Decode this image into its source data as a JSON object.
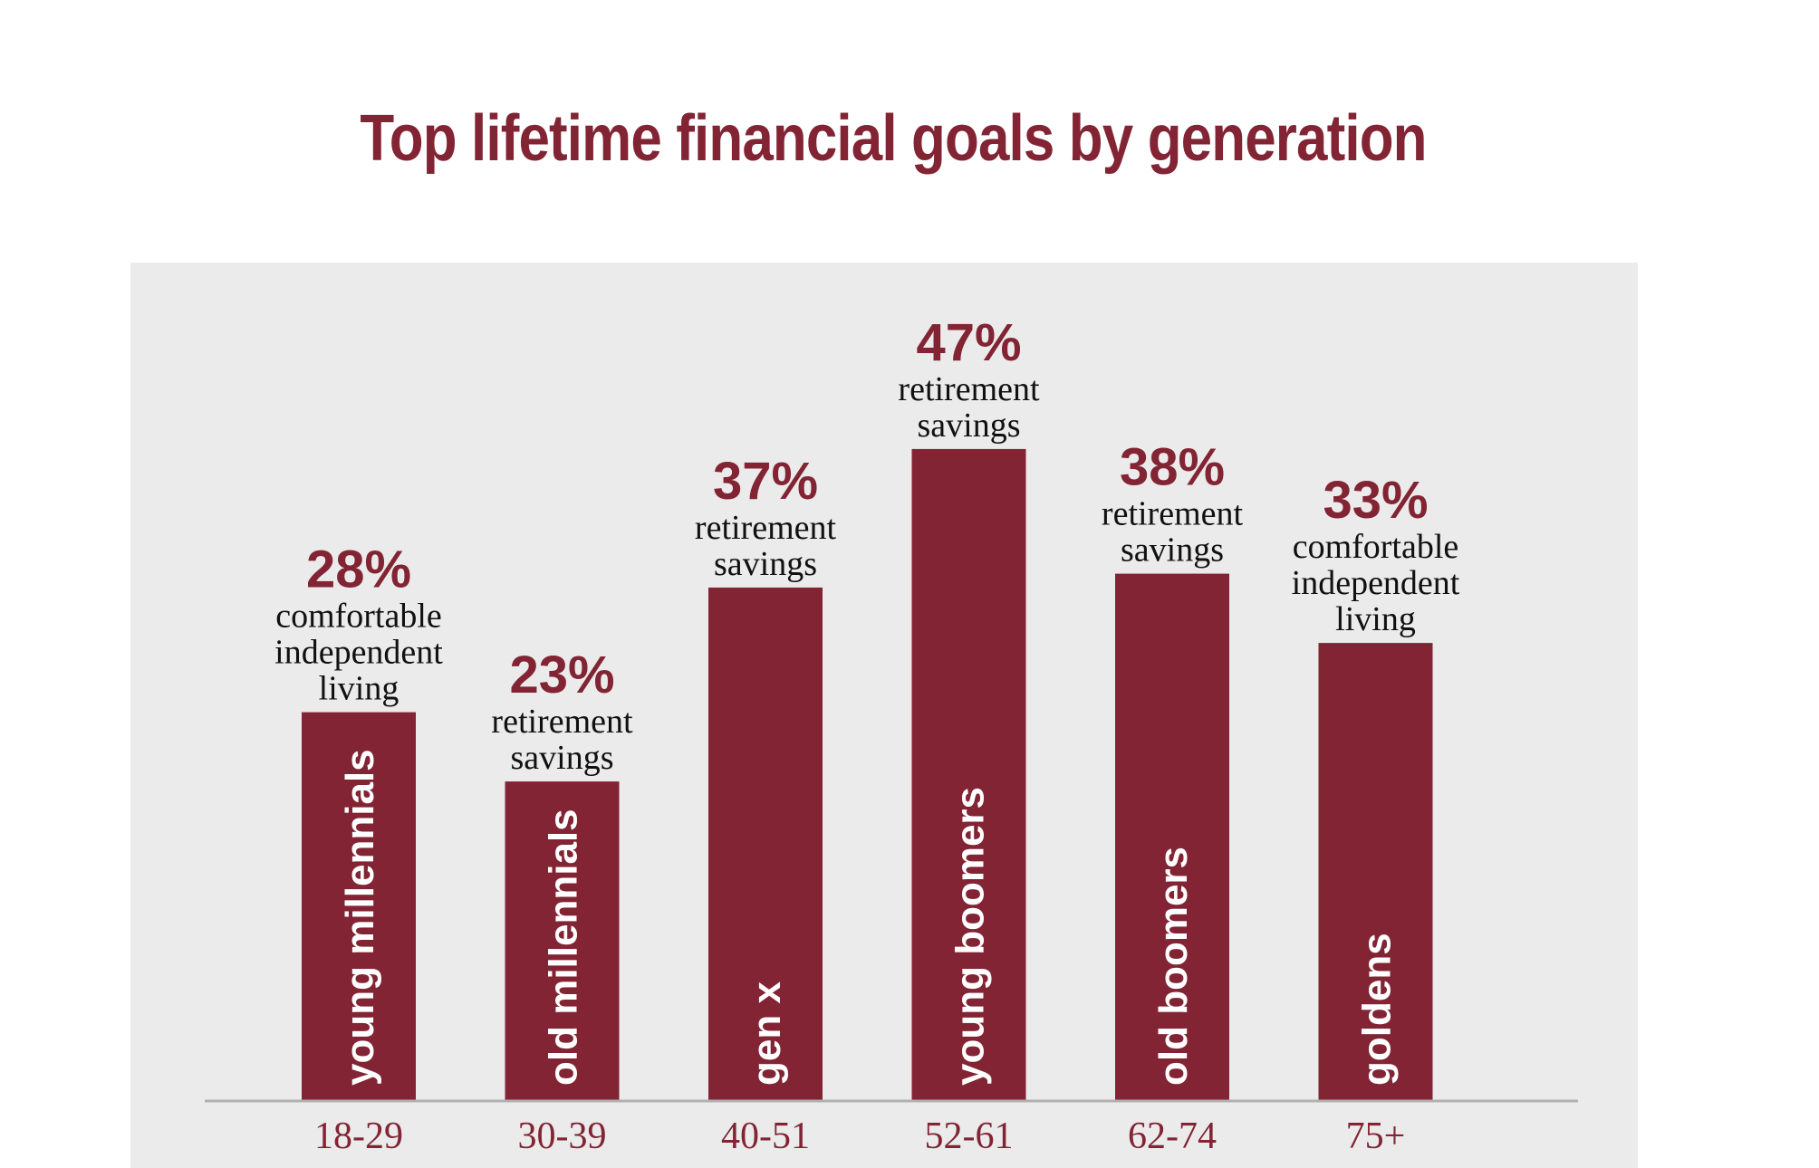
{
  "chart_data": {
    "type": "bar",
    "title": "Top lifetime financial goals by generation",
    "xlabel": "",
    "ylabel": "",
    "ylim": [
      0,
      50
    ],
    "grid": false,
    "legend": "none",
    "categories": [
      "18-29",
      "30-39",
      "40-51",
      "52-61",
      "62-74",
      "75+"
    ],
    "generations": [
      "young millennials",
      "old millennials",
      "gen x",
      "young boomers",
      "old boomers",
      "goldens"
    ],
    "values": [
      28,
      23,
      37,
      47,
      38,
      33
    ],
    "value_labels": [
      "28%",
      "23%",
      "37%",
      "47%",
      "38%",
      "33%"
    ],
    "goals": [
      [
        "comfortable",
        "independent",
        "living"
      ],
      [
        "retirement",
        "savings"
      ],
      [
        "retirement",
        "savings"
      ],
      [
        "retirement",
        "savings"
      ],
      [
        "retirement",
        "savings"
      ],
      [
        "comfortable",
        "independent",
        "living"
      ]
    ],
    "colors": {
      "bar": "#822433",
      "title": "#822433",
      "panel": "#ebebeb",
      "axis": "#b0b0b0"
    }
  }
}
